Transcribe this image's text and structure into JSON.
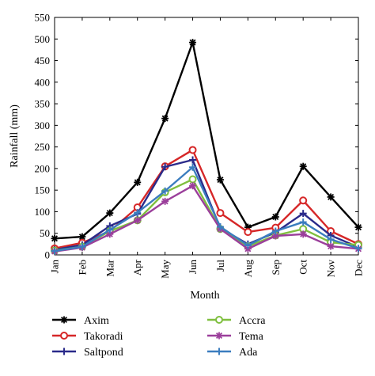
{
  "chart_data": {
    "type": "line",
    "title": "",
    "xlabel": "Month",
    "ylabel": "Rainfall (mm)",
    "ylim": [
      0,
      550
    ],
    "yticks": [
      0,
      50,
      100,
      150,
      200,
      250,
      300,
      350,
      400,
      450,
      500,
      550
    ],
    "grid": false,
    "legend_position": "bottom",
    "categories": [
      "Jan",
      "Feb",
      "Mar",
      "Apr",
      "May",
      "Jun",
      "Jul",
      "Aug",
      "Sep",
      "Oct",
      "Nov",
      "Dec"
    ],
    "series": [
      {
        "name": "Axim",
        "color": "#000000",
        "marker": "asterisk",
        "values": [
          38,
          42,
          97,
          168,
          316,
          492,
          174,
          64,
          88,
          205,
          134,
          64
        ]
      },
      {
        "name": "Takoradi",
        "color": "#d62728",
        "marker": "circle",
        "values": [
          15,
          28,
          55,
          110,
          205,
          243,
          97,
          53,
          63,
          126,
          55,
          25
        ]
      },
      {
        "name": "Saltpond",
        "color": "#2a2a8a",
        "marker": "plus",
        "values": [
          12,
          23,
          67,
          95,
          204,
          220,
          62,
          25,
          52,
          96,
          45,
          18
        ]
      },
      {
        "name": "Accra",
        "color": "#7fbf3f",
        "marker": "circle",
        "values": [
          10,
          19,
          55,
          80,
          145,
          175,
          60,
          20,
          45,
          60,
          29,
          23
        ]
      },
      {
        "name": "Tema",
        "color": "#9b3f9b",
        "marker": "asterisk",
        "values": [
          8,
          17,
          48,
          80,
          124,
          160,
          60,
          14,
          44,
          48,
          20,
          14
        ]
      },
      {
        "name": "Ada",
        "color": "#3b7dbf",
        "marker": "plus",
        "values": [
          9,
          19,
          58,
          98,
          148,
          203,
          65,
          22,
          55,
          76,
          36,
          15
        ]
      }
    ]
  }
}
